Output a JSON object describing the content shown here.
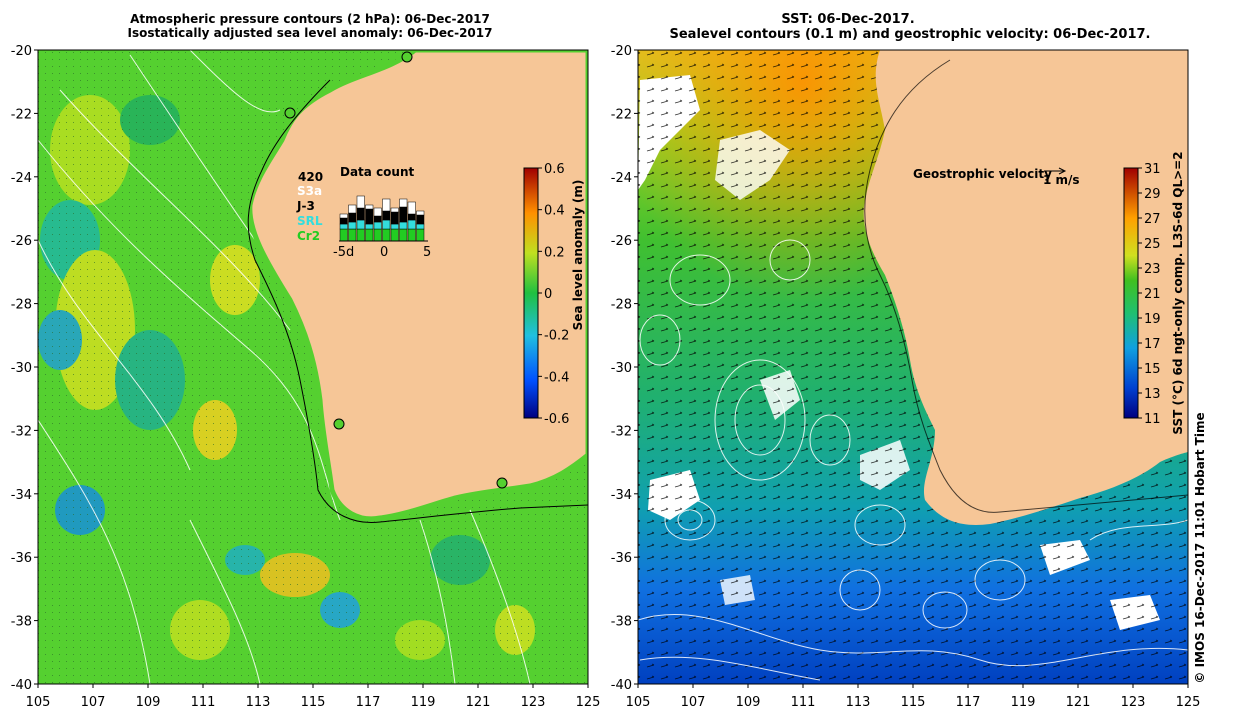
{
  "left_panel": {
    "title_line1": "Atmospheric pressure contours (2 hPa): 06-Dec-2017",
    "title_line2": "Isostatically adjusted sea level anomaly: 06-Dec-2017",
    "colorbar": {
      "label": "Sea level anomaly (m)",
      "ticks": [
        "0.6",
        "0.4",
        "0.2",
        "0",
        "-0.2",
        "-0.4",
        "-0.6"
      ]
    },
    "data_count": {
      "title": "Data count",
      "total": "420",
      "missions": [
        {
          "name": "S3a",
          "color": "#ffffff"
        },
        {
          "name": "J-3",
          "color": "#000000"
        },
        {
          "name": "SRL",
          "color": "#33dddd"
        },
        {
          "name": "Cr2",
          "color": "#22cc22"
        }
      ],
      "x_ticks": [
        "-5d",
        "0",
        "5"
      ]
    }
  },
  "right_panel": {
    "title_line1": "SST: 06-Dec-2017.",
    "title_line2": "Sealevel contours (0.1 m) and geostrophic velocity: 06-Dec-2017.",
    "velocity_legend": {
      "label": "Geostrophic velocity",
      "scale": "1 m/s"
    },
    "colorbar": {
      "label": "SST (°C) 6d ngt-only comp. L3S-6d QL>=2",
      "ticks": [
        "31",
        "29",
        "27",
        "25",
        "23",
        "21",
        "19",
        "17",
        "15",
        "13",
        "11"
      ]
    }
  },
  "axes": {
    "y_ticks": [
      "-20",
      "-22",
      "-24",
      "-26",
      "-28",
      "-30",
      "-32",
      "-34",
      "-36",
      "-38",
      "-40"
    ],
    "x_ticks": [
      "105",
      "107",
      "109",
      "111",
      "113",
      "115",
      "117",
      "119",
      "121",
      "123",
      "125"
    ]
  },
  "credit": "© IMOS 16-Dec-2017 11:01 Hobart Time"
}
